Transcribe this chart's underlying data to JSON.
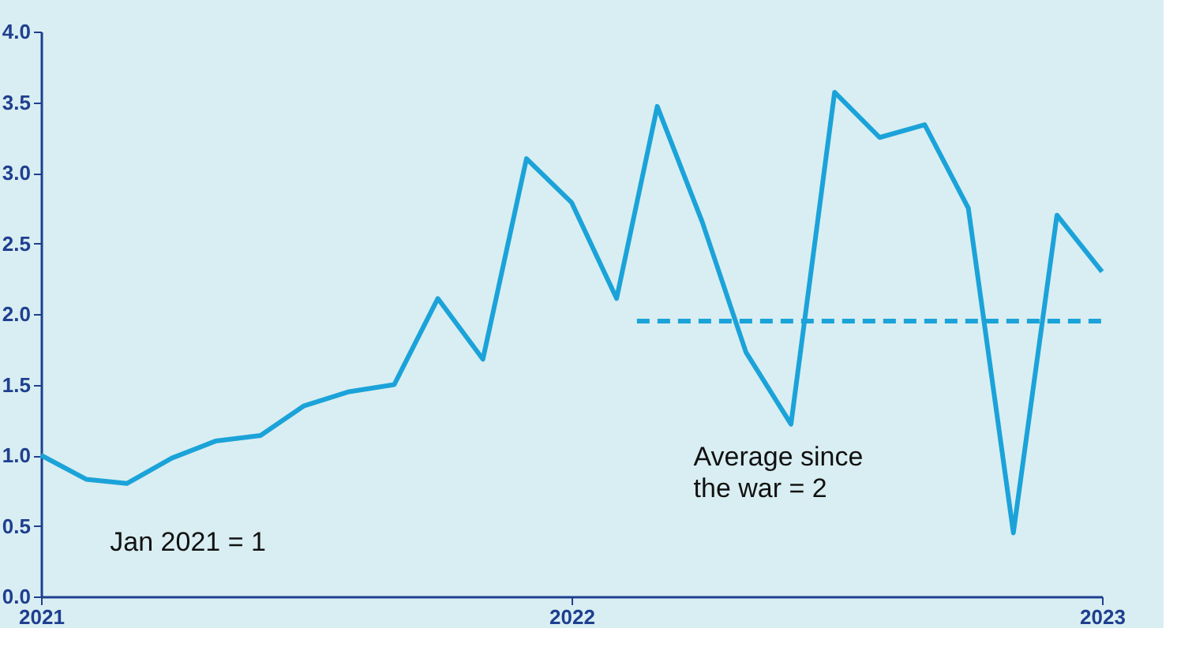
{
  "chart_data": {
    "type": "line",
    "x": [
      "2021-01",
      "2021-02",
      "2021-03",
      "2021-04",
      "2021-05",
      "2021-06",
      "2021-07",
      "2021-08",
      "2021-09",
      "2021-10",
      "2021-11",
      "2021-12",
      "2022-01",
      "2022-02",
      "2022-03",
      "2022-04",
      "2022-05",
      "2022-06",
      "2022-07",
      "2022-08",
      "2022-09",
      "2022-10",
      "2022-11",
      "2022-12",
      "2023-01"
    ],
    "series": [
      {
        "color": "#1ba3d9",
        "values": [
          1.0,
          0.83,
          0.8,
          0.98,
          1.1,
          1.14,
          1.35,
          1.45,
          1.5,
          2.11,
          1.68,
          3.1,
          2.79,
          2.11,
          3.47,
          2.65,
          1.73,
          1.22,
          3.57,
          3.25,
          3.34,
          2.75,
          0.45,
          2.7,
          2.3
        ]
      },
      {
        "type": "line",
        "line_style": "dashed",
        "color": "#1ba3d9",
        "x": [
          "2022-02-15",
          "2023-01-01"
        ],
        "values": [
          1.95,
          1.95
        ]
      }
    ],
    "xlim": [
      "2021-01",
      "2023-01"
    ],
    "xticks": [
      {
        "value": "2021-01",
        "label": "2021"
      },
      {
        "value": "2022-01",
        "label": "2022"
      },
      {
        "value": "2023-01",
        "label": "2023"
      }
    ],
    "ylim": [
      0,
      4
    ],
    "yticks": [
      {
        "value": 0,
        "label": "0.0"
      },
      {
        "value": 0.5,
        "label": "0.5"
      },
      {
        "value": 1,
        "label": "1.0"
      },
      {
        "value": 1.5,
        "label": "1.5"
      },
      {
        "value": 2,
        "label": "2.0"
      },
      {
        "value": 2.5,
        "label": "2.5"
      },
      {
        "value": 3,
        "label": "3.0"
      },
      {
        "value": 3.5,
        "label": "3.5"
      },
      {
        "value": 4,
        "label": "4.0"
      }
    ],
    "annotations": [
      "Jan 2021 = 1",
      "Average since\nthe war = 2"
    ],
    "grid": false,
    "line_style": "solid",
    "marker": "none"
  }
}
